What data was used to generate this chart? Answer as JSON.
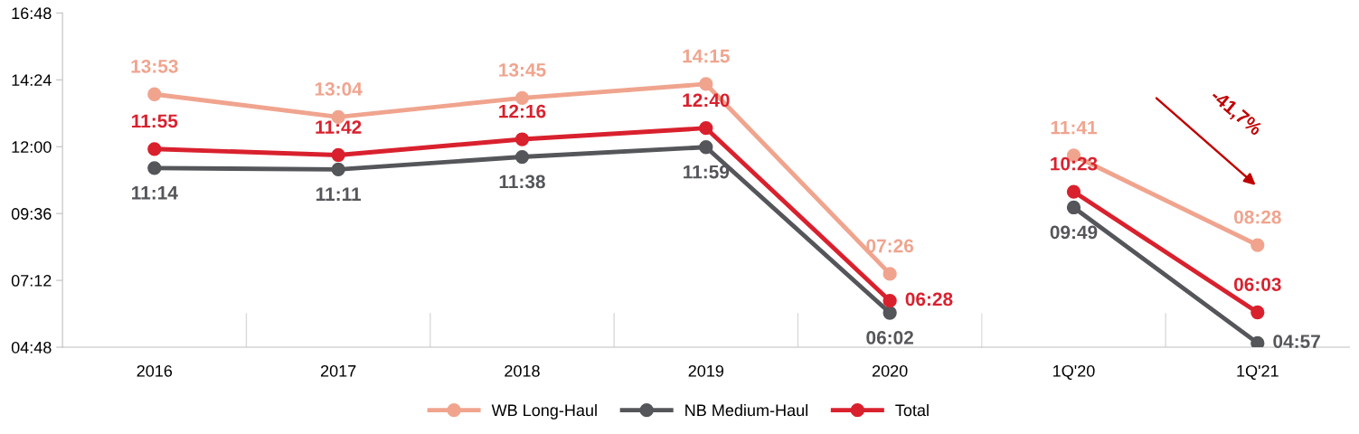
{
  "chart_data": [
    {
      "type": "line",
      "categories": [
        "2016",
        "2017",
        "2018",
        "2019",
        "2020"
      ],
      "ylim": [
        4.8,
        16.8
      ],
      "yticks": [
        {
          "value": 4.8,
          "label": "04:48"
        },
        {
          "value": 7.2,
          "label": "07:12"
        },
        {
          "value": 9.6,
          "label": "09:36"
        },
        {
          "value": 12,
          "label": "12:00"
        },
        {
          "value": 14.4,
          "label": "14:24"
        },
        {
          "value": 16.8,
          "label": "16:48"
        }
      ],
      "series": [
        {
          "name": "WB Long-Haul",
          "color": "#f0a48e",
          "values": [
            13.883,
            13.067,
            13.75,
            14.25,
            7.433
          ],
          "value_labels": [
            "13:53",
            "13:04",
            "13:45",
            "14:15",
            "07:26"
          ]
        },
        {
          "name": "NB Medium-Haul",
          "color": "#54565a",
          "values": [
            11.233,
            11.183,
            11.633,
            11.983,
            6.033
          ],
          "value_labels": [
            "11:14",
            "11:11",
            "11:38",
            "11:59",
            "06:02"
          ]
        },
        {
          "name": "Total",
          "color": "#d9212e",
          "values": [
            11.917,
            11.7,
            12.267,
            12.667,
            6.467
          ],
          "value_labels": [
            "11:55",
            "11:42",
            "12:16",
            "12:40",
            "06:28"
          ]
        }
      ],
      "marker": "circle",
      "line_style": "solid",
      "legend": "bottom",
      "grid": false
    },
    {
      "type": "line",
      "categories": [
        "1Q'20",
        "1Q'21"
      ],
      "ylim": [
        4.8,
        16.8
      ],
      "tick_labels": "x",
      "grid": false,
      "series": [
        {
          "color": "#f0a48e",
          "values": [
            11.683,
            8.467
          ],
          "value_labels": [
            "11:41",
            "08:28"
          ]
        },
        {
          "color": "#54565a",
          "values": [
            9.817,
            4.95
          ],
          "value_labels": [
            "09:49",
            "04:57"
          ]
        },
        {
          "color": "#d9212e",
          "values": [
            10.383,
            6.05
          ],
          "value_labels": [
            "10:23",
            "06:03"
          ]
        }
      ],
      "annotations": [
        "-41,7%"
      ],
      "marker": "circle",
      "line_style": "solid"
    }
  ]
}
